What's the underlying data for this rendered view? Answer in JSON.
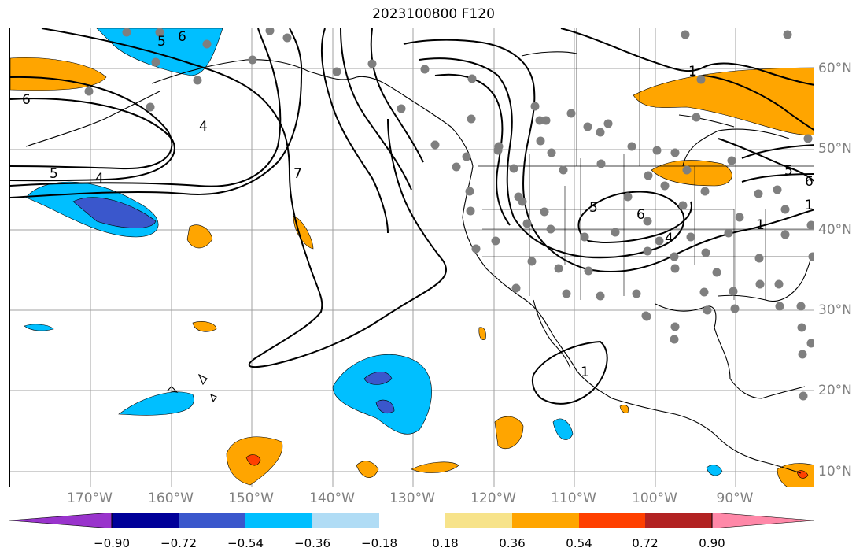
{
  "title": "2023100800 F120",
  "map": {
    "longitude_labels": [
      "170°W",
      "160°W",
      "150°W",
      "140°W",
      "130°W",
      "120°W",
      "110°W",
      "100°W",
      "90°W"
    ],
    "latitude_labels": [
      "60°N",
      "50°N",
      "40°N",
      "30°N",
      "20°N",
      "10°N"
    ],
    "contour_labels": [
      "6",
      "5",
      "4",
      "6",
      "5",
      "4",
      "7",
      "5",
      "6",
      "4",
      "1",
      "1",
      "5",
      "6",
      "1",
      "1"
    ],
    "gridline_color": "#a0a0a0",
    "land_line_color": "#000000",
    "station_marker_color": "#7f7f7f"
  },
  "colorbar": {
    "tick_labels": [
      "−0.90",
      "−0.72",
      "−0.54",
      "−0.36",
      "−0.18",
      "0.18",
      "0.36",
      "0.54",
      "0.72",
      "0.90"
    ],
    "colors": [
      "#9933cc",
      "#000099",
      "#3a57cc",
      "#00bfff",
      "#b0dcf5",
      "#ffffff",
      "#f7e38a",
      "#ffa500",
      "#ff4000",
      "#b22222",
      "#ff88a8"
    ]
  }
}
